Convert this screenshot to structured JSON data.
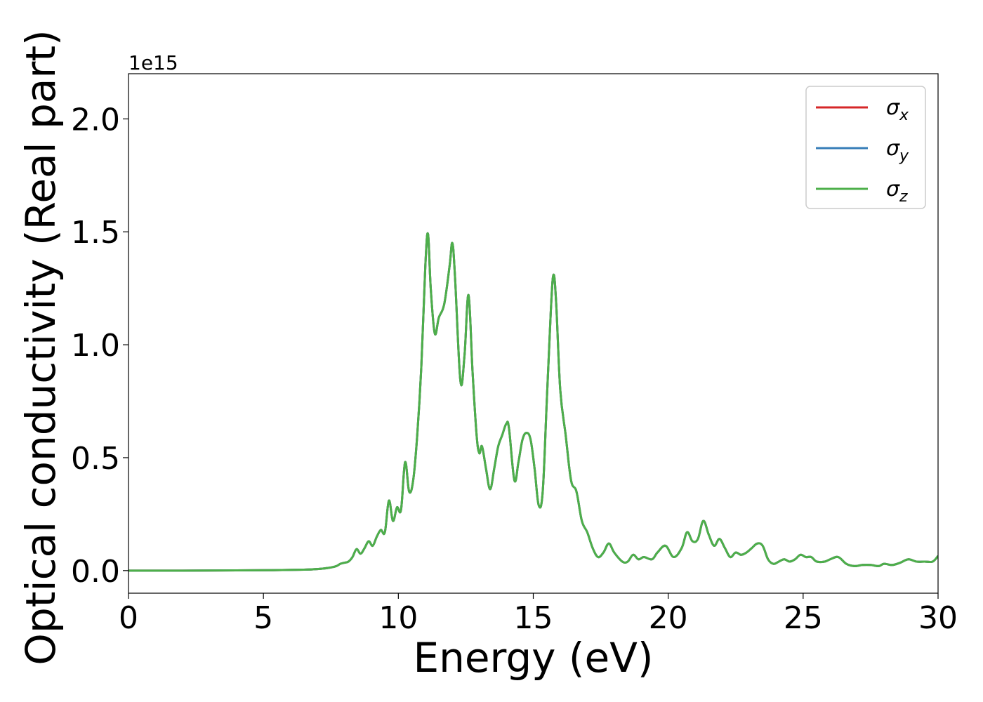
{
  "chart_data": {
    "type": "line",
    "title": "",
    "xlabel": "Energy (eV)",
    "ylabel": "Optical conductivity (Real part)",
    "y_offset_label": "1e15",
    "y_scale": 1000000000000000.0,
    "xlim": [
      0,
      30
    ],
    "ylim": [
      -0.1,
      2.2
    ],
    "x_ticks": [
      0,
      5,
      10,
      15,
      20,
      25,
      30
    ],
    "y_ticks": [
      0.0,
      0.5,
      1.0,
      1.5,
      2.0
    ],
    "x_tick_labels": [
      "0",
      "5",
      "10",
      "15",
      "20",
      "25",
      "30"
    ],
    "y_tick_labels": [
      "0.0",
      "0.5",
      "1.0",
      "1.5",
      "2.0"
    ],
    "grid": false,
    "legend_position": "top-right",
    "x": [
      0,
      2,
      4,
      5.5,
      6.5,
      7.0,
      7.4,
      7.7,
      7.85,
      8.0,
      8.15,
      8.3,
      8.45,
      8.6,
      8.75,
      8.9,
      9.05,
      9.2,
      9.35,
      9.5,
      9.65,
      9.8,
      9.95,
      10.1,
      10.25,
      10.4,
      10.55,
      10.7,
      10.85,
      11.0,
      11.1,
      11.2,
      11.35,
      11.5,
      11.7,
      11.9,
      12.0,
      12.1,
      12.3,
      12.45,
      12.6,
      12.75,
      12.9,
      13.0,
      13.1,
      13.25,
      13.4,
      13.55,
      13.7,
      13.85,
      14.0,
      14.1,
      14.3,
      14.45,
      14.6,
      14.75,
      14.9,
      15.05,
      15.2,
      15.35,
      15.5,
      15.65,
      15.75,
      15.85,
      16.0,
      16.2,
      16.4,
      16.6,
      16.8,
      17.0,
      17.2,
      17.4,
      17.6,
      17.8,
      18.0,
      18.3,
      18.5,
      18.7,
      18.9,
      19.1,
      19.4,
      19.6,
      19.9,
      20.2,
      20.5,
      20.7,
      20.9,
      21.1,
      21.3,
      21.5,
      21.7,
      21.9,
      22.1,
      22.3,
      22.5,
      22.7,
      22.9,
      23.1,
      23.3,
      23.5,
      23.7,
      23.9,
      24.1,
      24.3,
      24.5,
      24.7,
      24.9,
      25.1,
      25.3,
      25.5,
      25.8,
      26.0,
      26.3,
      26.6,
      26.9,
      27.2,
      27.5,
      27.8,
      28.0,
      28.3,
      28.6,
      28.9,
      29.2,
      29.5,
      29.8,
      30.0
    ],
    "series": [
      {
        "name": "σx",
        "color": "#d62728",
        "values": [
          0.0,
          0.0,
          0.001,
          0.002,
          0.004,
          0.007,
          0.012,
          0.02,
          0.03,
          0.035,
          0.04,
          0.06,
          0.095,
          0.075,
          0.1,
          0.13,
          0.11,
          0.15,
          0.18,
          0.17,
          0.31,
          0.22,
          0.28,
          0.27,
          0.48,
          0.35,
          0.4,
          0.6,
          0.9,
          1.35,
          1.49,
          1.25,
          1.05,
          1.12,
          1.18,
          1.35,
          1.45,
          1.3,
          0.84,
          0.95,
          1.22,
          0.88,
          0.6,
          0.52,
          0.55,
          0.45,
          0.36,
          0.45,
          0.55,
          0.6,
          0.65,
          0.63,
          0.4,
          0.48,
          0.58,
          0.61,
          0.58,
          0.45,
          0.29,
          0.35,
          0.75,
          1.15,
          1.31,
          1.18,
          0.8,
          0.6,
          0.4,
          0.35,
          0.22,
          0.17,
          0.1,
          0.06,
          0.08,
          0.12,
          0.08,
          0.04,
          0.04,
          0.07,
          0.05,
          0.06,
          0.05,
          0.08,
          0.11,
          0.06,
          0.1,
          0.17,
          0.13,
          0.14,
          0.22,
          0.16,
          0.11,
          0.14,
          0.1,
          0.06,
          0.08,
          0.07,
          0.08,
          0.1,
          0.12,
          0.11,
          0.05,
          0.03,
          0.04,
          0.05,
          0.04,
          0.05,
          0.07,
          0.06,
          0.06,
          0.04,
          0.04,
          0.05,
          0.06,
          0.03,
          0.02,
          0.025,
          0.025,
          0.02,
          0.03,
          0.025,
          0.035,
          0.05,
          0.04,
          0.04,
          0.04,
          0.065
        ]
      },
      {
        "name": "σy",
        "color": "#377eb8",
        "values": [
          0.0,
          0.0,
          0.001,
          0.002,
          0.004,
          0.007,
          0.012,
          0.02,
          0.03,
          0.035,
          0.04,
          0.06,
          0.095,
          0.075,
          0.1,
          0.13,
          0.11,
          0.15,
          0.18,
          0.17,
          0.31,
          0.22,
          0.28,
          0.27,
          0.48,
          0.35,
          0.4,
          0.6,
          0.9,
          1.35,
          1.49,
          1.25,
          1.05,
          1.12,
          1.18,
          1.35,
          1.45,
          1.3,
          0.84,
          0.95,
          1.22,
          0.88,
          0.6,
          0.52,
          0.55,
          0.45,
          0.36,
          0.45,
          0.55,
          0.6,
          0.65,
          0.63,
          0.4,
          0.48,
          0.58,
          0.61,
          0.58,
          0.45,
          0.29,
          0.35,
          0.75,
          1.15,
          1.31,
          1.18,
          0.8,
          0.6,
          0.4,
          0.35,
          0.22,
          0.17,
          0.1,
          0.06,
          0.08,
          0.12,
          0.08,
          0.04,
          0.04,
          0.07,
          0.05,
          0.06,
          0.05,
          0.08,
          0.11,
          0.06,
          0.1,
          0.17,
          0.13,
          0.14,
          0.22,
          0.16,
          0.11,
          0.14,
          0.1,
          0.06,
          0.08,
          0.07,
          0.08,
          0.1,
          0.12,
          0.11,
          0.05,
          0.03,
          0.04,
          0.05,
          0.04,
          0.05,
          0.07,
          0.06,
          0.06,
          0.04,
          0.04,
          0.05,
          0.06,
          0.03,
          0.02,
          0.025,
          0.025,
          0.02,
          0.03,
          0.025,
          0.035,
          0.05,
          0.04,
          0.04,
          0.04,
          0.065
        ]
      },
      {
        "name": "σz",
        "color": "#4daf4a",
        "values": [
          0.0,
          0.0,
          0.001,
          0.002,
          0.004,
          0.007,
          0.012,
          0.02,
          0.03,
          0.035,
          0.04,
          0.06,
          0.095,
          0.075,
          0.1,
          0.13,
          0.11,
          0.15,
          0.18,
          0.17,
          0.31,
          0.22,
          0.28,
          0.27,
          0.48,
          0.35,
          0.4,
          0.6,
          0.9,
          1.35,
          1.49,
          1.25,
          1.05,
          1.12,
          1.18,
          1.35,
          1.45,
          1.3,
          0.84,
          0.95,
          1.22,
          0.88,
          0.6,
          0.52,
          0.55,
          0.45,
          0.36,
          0.45,
          0.55,
          0.6,
          0.65,
          0.63,
          0.4,
          0.48,
          0.58,
          0.61,
          0.58,
          0.45,
          0.29,
          0.35,
          0.75,
          1.15,
          1.31,
          1.18,
          0.8,
          0.6,
          0.4,
          0.35,
          0.22,
          0.17,
          0.1,
          0.06,
          0.08,
          0.12,
          0.08,
          0.04,
          0.04,
          0.07,
          0.05,
          0.06,
          0.05,
          0.08,
          0.11,
          0.06,
          0.1,
          0.17,
          0.13,
          0.14,
          0.22,
          0.16,
          0.11,
          0.14,
          0.1,
          0.06,
          0.08,
          0.07,
          0.08,
          0.1,
          0.12,
          0.11,
          0.05,
          0.03,
          0.04,
          0.05,
          0.04,
          0.05,
          0.07,
          0.06,
          0.06,
          0.04,
          0.04,
          0.05,
          0.06,
          0.03,
          0.02,
          0.025,
          0.025,
          0.02,
          0.03,
          0.025,
          0.035,
          0.05,
          0.04,
          0.04,
          0.04,
          0.065
        ]
      }
    ],
    "legend": [
      {
        "symbol": "σ",
        "sub": "x",
        "color": "#d62728"
      },
      {
        "symbol": "σ",
        "sub": "y",
        "color": "#377eb8"
      },
      {
        "symbol": "σ",
        "sub": "z",
        "color": "#4daf4a"
      }
    ]
  }
}
